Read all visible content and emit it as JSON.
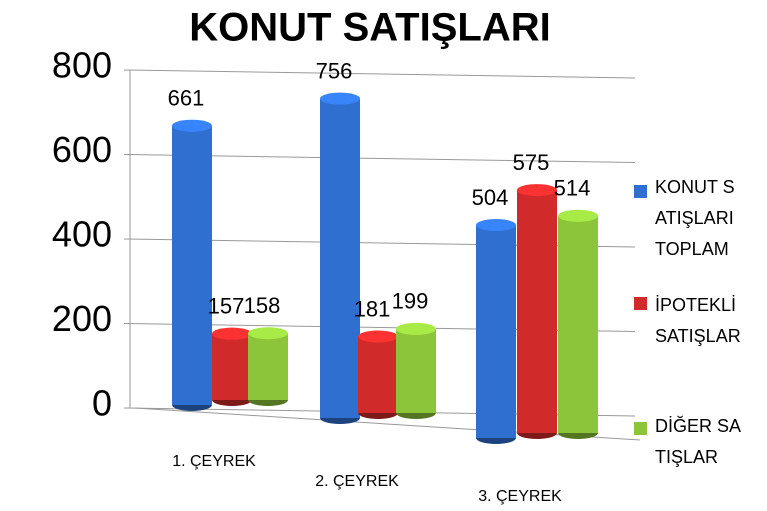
{
  "chart_data": {
    "type": "bar",
    "title": "KONUT SATIŞLARI",
    "categories": [
      "1. ÇEYREK",
      "2. ÇEYREK",
      "3. ÇEYREK"
    ],
    "series": [
      {
        "name": "KONUT SATIŞLARI TOPLAM",
        "color": "#2f6fd0",
        "values": [
          661,
          756,
          504
        ]
      },
      {
        "name": "İPOTEKLİ SATIŞLAR",
        "color": "#d02a2a",
        "values": [
          157,
          181,
          575
        ]
      },
      {
        "name": "DİĞER SATIŞLAR",
        "color": "#8cc43a",
        "values": [
          158,
          199,
          514
        ]
      }
    ],
    "ylim": [
      0,
      800
    ],
    "yticks": [
      0,
      200,
      400,
      600,
      800
    ],
    "grid": true,
    "legend": "right"
  }
}
